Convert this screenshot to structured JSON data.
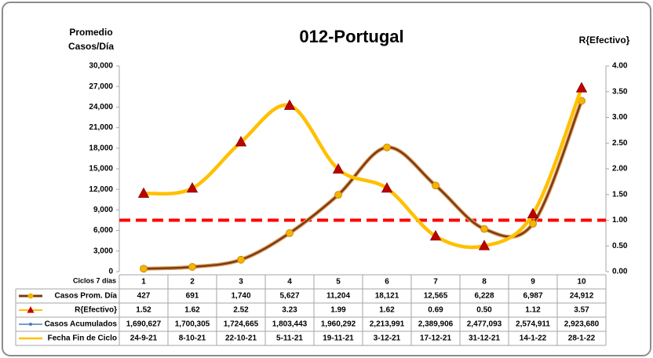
{
  "chart_data": {
    "type": "line",
    "title": "012-Portugal",
    "y_label_lines": [
      "Promedio",
      "Casos/Día"
    ],
    "y2_label": "R{Efectivo}",
    "x_label": "Ciclos 7 días",
    "categories": [
      "1",
      "2",
      "3",
      "4",
      "5",
      "6",
      "7",
      "8",
      "9",
      "10"
    ],
    "series": [
      {
        "name": "Casos Prom. Día",
        "color": "#7a3b12",
        "marker_color": "#f5b400",
        "show_line": true,
        "values": [
          427,
          691,
          1740,
          5627,
          11204,
          18121,
          12565,
          6228,
          6987,
          24912
        ],
        "value_labels": [
          "427",
          "691",
          "1,740",
          "5,627",
          "11,204",
          "18,121",
          "12,565",
          "6,228",
          "6,987",
          "24,912"
        ]
      },
      {
        "name": "R{Efectivo}",
        "color": "#ffc000",
        "marker_color": "#c00000",
        "axis": "y2",
        "show_line": true,
        "values": [
          1.52,
          1.62,
          2.52,
          3.23,
          1.99,
          1.62,
          0.69,
          0.5,
          1.12,
          3.57
        ],
        "value_labels": [
          "1.52",
          "1.62",
          "2.52",
          "3.23",
          "1.99",
          "1.62",
          "0.69",
          "0.50",
          "1.12",
          "3.57"
        ]
      },
      {
        "name": "Casos Acumulados",
        "color": "#4a7ebb",
        "marker_color": "#4a7ebb",
        "show_line": false,
        "values": [
          1690627,
          1700305,
          1724665,
          1803443,
          1960292,
          2213991,
          2389906,
          2477093,
          2574911,
          2923680
        ],
        "value_labels": [
          "1,690,627",
          "1,700,305",
          "1,724,665",
          "1,803,443",
          "1,960,292",
          "2,213,991",
          "2,389,906",
          "2,477,093",
          "2,574,911",
          "2,923,680"
        ]
      }
    ],
    "table_rows": [
      {
        "name": "Fecha Fin de Ciclo",
        "color": "#ffc000",
        "values": [
          "24-9-21",
          "8-10-21",
          "22-10-21",
          "5-11-21",
          "19-11-21",
          "3-12-21",
          "17-12-21",
          "31-12-21",
          "14-1-22",
          "28-1-22"
        ]
      }
    ],
    "reference_line": {
      "value": 1,
      "axis": "y2",
      "color": "#ff0000"
    },
    "ylim": [
      0,
      30000
    ],
    "yticks": [
      {
        "value": 0,
        "label": "0"
      },
      {
        "value": 3000,
        "label": "3,000"
      },
      {
        "value": 6000,
        "label": "6,000"
      },
      {
        "value": 9000,
        "label": "9,000"
      },
      {
        "value": 12000,
        "label": "12,000"
      },
      {
        "value": 15000,
        "label": "15,000"
      },
      {
        "value": 18000,
        "label": "18,000"
      },
      {
        "value": 21000,
        "label": "21,000"
      },
      {
        "value": 24000,
        "label": "24,000"
      },
      {
        "value": 27000,
        "label": "27,000"
      },
      {
        "value": 30000,
        "label": "30,000"
      }
    ],
    "y2lim": [
      0,
      4
    ],
    "y2ticks": [
      {
        "value": 0,
        "label": "0.00"
      },
      {
        "value": 0.5,
        "label": "0.50"
      },
      {
        "value": 1,
        "label": "1.00"
      },
      {
        "value": 1.5,
        "label": "1.50"
      },
      {
        "value": 2,
        "label": "2.00"
      },
      {
        "value": 2.5,
        "label": "2.50"
      },
      {
        "value": 3,
        "label": "3.00"
      },
      {
        "value": 3.5,
        "label": "3.50"
      },
      {
        "value": 4,
        "label": "4.00"
      }
    ],
    "grid": false
  }
}
